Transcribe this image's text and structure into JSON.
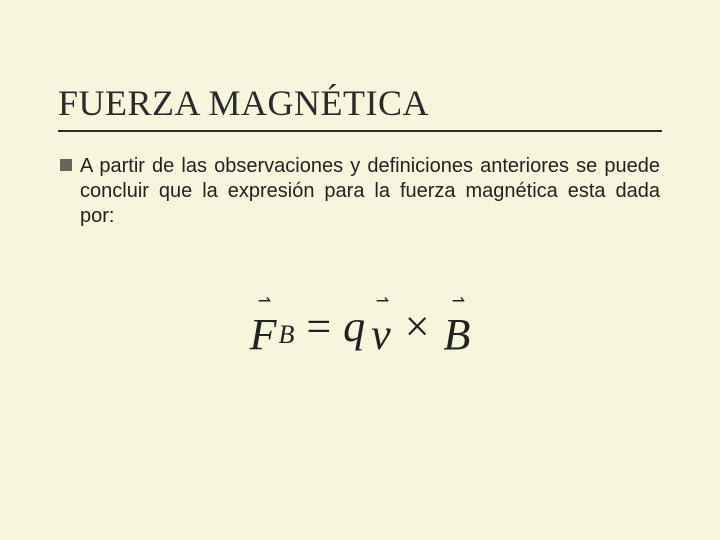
{
  "slide": {
    "background_color": "#f7f5dc",
    "title": {
      "text": "FUERZA MAGNÉTICA",
      "font_family": "Times New Roman",
      "font_size": 36,
      "color": "#2a2a2a",
      "underline_color": "#2a2a2a"
    },
    "bullet": {
      "marker_color": "#6b6456",
      "text": "A partir de las observaciones y definiciones anteriores se puede concluir que la expresión para la fuerza magnética esta dada por:",
      "font_size": 20,
      "color": "#222222"
    },
    "formula": {
      "type": "equation",
      "font_family": "Times New Roman",
      "font_size": 44,
      "font_style": "italic",
      "color": "#222222",
      "lhs_symbol": "F",
      "lhs_subscript": "B",
      "equals": "=",
      "rhs_q": "q",
      "rhs_v": "v",
      "cross": "×",
      "rhs_B": "B",
      "vector_overset": "⇀"
    }
  }
}
